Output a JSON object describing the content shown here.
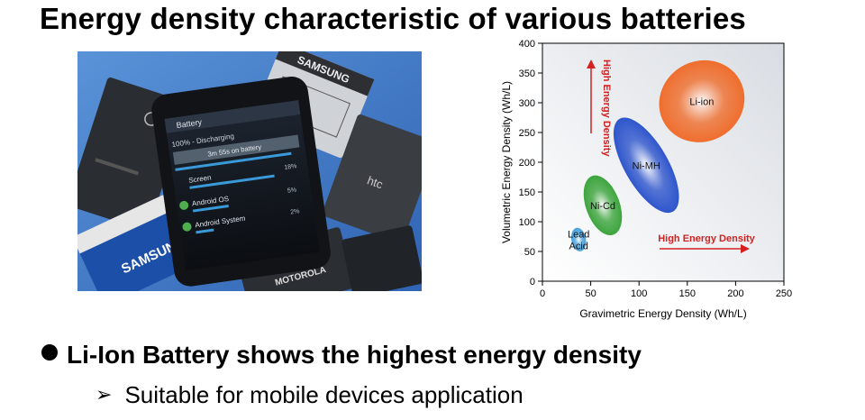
{
  "slide": {
    "title": "Energy density characteristic of various batteries",
    "bullet": "Li-Ion Battery shows the highest energy density",
    "sub_bullet": "Suitable for mobile devices application",
    "sub_bullet_icon": "arrow-right-icon"
  },
  "photo": {
    "battery_screen_title": "Battery",
    "battery_status": "100% - Discharging",
    "battery_time": "3m 55s on battery",
    "usage_rows": [
      {
        "label": "Screen",
        "percent": "18%"
      },
      {
        "label": "Android OS",
        "percent": "5%"
      },
      {
        "label": "Android System",
        "percent": "2%"
      }
    ],
    "battery_brands": [
      "SAMSUNG",
      "htc",
      "SAMSUNG",
      "MOTOROLA"
    ]
  },
  "chart_data": {
    "type": "scatter",
    "xlabel": "Gravimetric Energy Density (Wh/L)",
    "ylabel": "Volumetric Energy Density (Wh/L)",
    "xlim": [
      0,
      250
    ],
    "ylim": [
      0,
      400
    ],
    "xticks": [
      0,
      50,
      100,
      150,
      200,
      250
    ],
    "yticks": [
      0,
      50,
      100,
      150,
      200,
      250,
      300,
      350,
      400
    ],
    "grid": false,
    "series": [
      {
        "name": "Lead Acid",
        "x": [
          30,
          45
        ],
        "y": [
          50,
          90
        ],
        "color": "#3a9ad9"
      },
      {
        "name": "Ni-Cd",
        "x": [
          45,
          80
        ],
        "y": [
          75,
          180
        ],
        "color": "#2e9e2e"
      },
      {
        "name": "Ni-MH",
        "x": [
          85,
          130
        ],
        "y": [
          105,
          285
        ],
        "color": "#1f49c9"
      },
      {
        "name": "Li-ion",
        "x": [
          120,
          210
        ],
        "y": [
          235,
          370
        ],
        "color": "#f0641e"
      }
    ],
    "annotations": [
      {
        "text": "High Energy Density",
        "direction": "vertical",
        "color": "#d42020"
      },
      {
        "text": "High Energy Density",
        "direction": "horizontal",
        "color": "#d42020"
      }
    ]
  }
}
